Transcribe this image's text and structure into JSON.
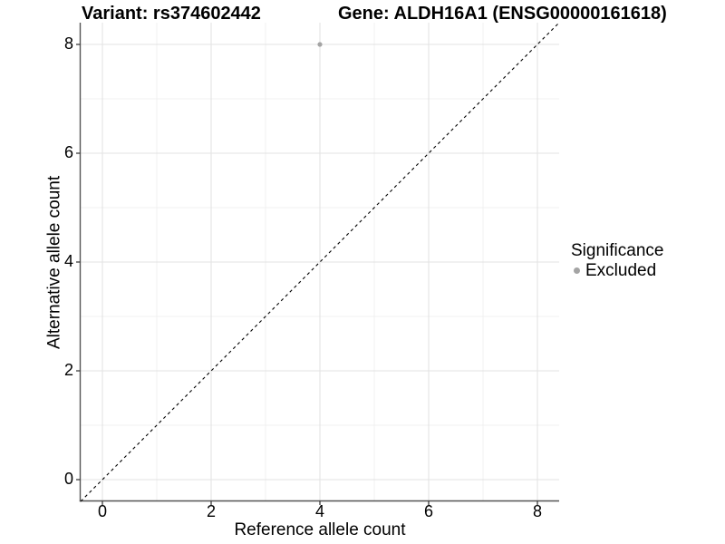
{
  "header": {
    "left_title": "Variant: rs374602442",
    "right_title": "Gene: ALDH16A1 (ENSG00000161618)"
  },
  "chart_data": {
    "type": "scatter",
    "xlabel": "Reference allele count",
    "ylabel": "Alternative allele count",
    "xlim": [
      -0.4,
      8.4
    ],
    "ylim": [
      -0.4,
      8.4
    ],
    "x_ticks": [
      0,
      2,
      4,
      6,
      8
    ],
    "y_ticks": [
      0,
      2,
      4,
      6,
      8
    ],
    "x_minor_ticks": [
      1,
      3,
      5,
      7
    ],
    "y_minor_ticks": [
      1,
      3,
      5,
      7
    ],
    "grid": "major and minor light-grey gridlines on white panel",
    "reference_line": {
      "slope": 1,
      "intercept": 0,
      "style": "dashed",
      "color": "#000000"
    },
    "series": [
      {
        "name": "Excluded",
        "color": "#a4a4a4",
        "points": [
          {
            "x": 4,
            "y": 8
          }
        ]
      }
    ],
    "legend": {
      "title": "Significance",
      "position": "right",
      "entries": [
        {
          "label": "Excluded",
          "color": "#a4a4a4"
        }
      ]
    }
  },
  "colors": {
    "background": "#ffffff",
    "grid_major": "#e3e3e3",
    "grid_minor": "#f0f0f0",
    "axis_line": "#545454",
    "tick_mark": "#3c3c3c",
    "text": "#000000",
    "point": "#a4a4a4"
  }
}
